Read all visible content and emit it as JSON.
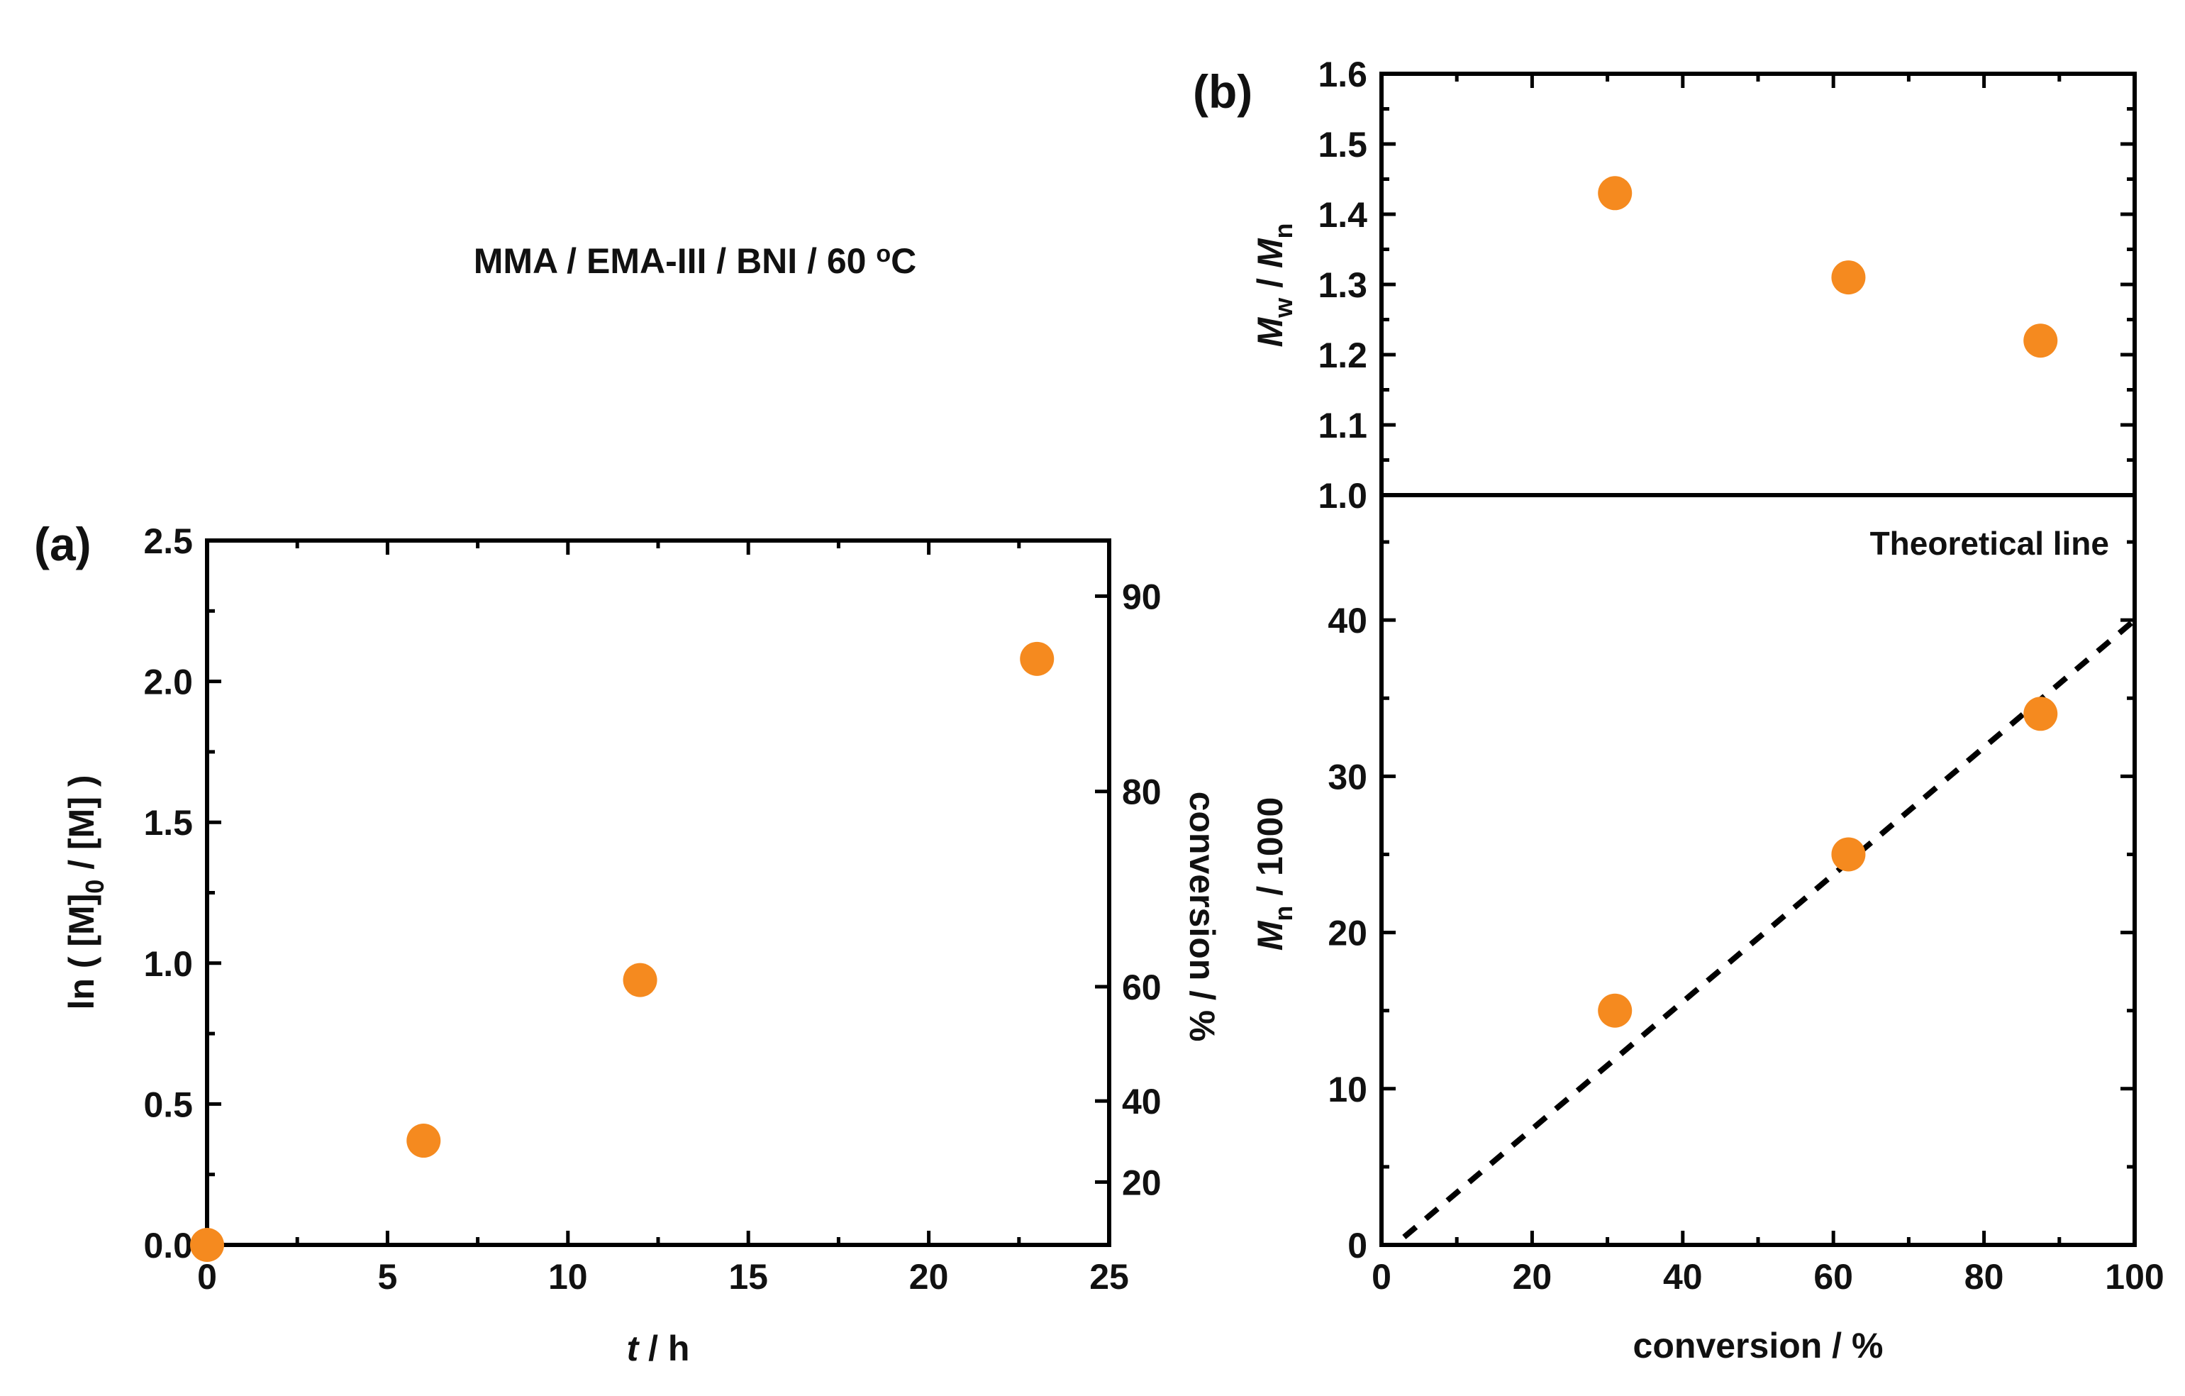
{
  "colors": {
    "marker": "#F58A1F",
    "axis": "#000000",
    "text": "#111111"
  },
  "chart_data": [
    {
      "id": "a",
      "type": "scatter",
      "panel_label": "(a)",
      "annotation": {
        "main": "MMA / EMA-III / BNI / 60 ",
        "sup": "o",
        "end": "C"
      },
      "xlabel": {
        "var": "t",
        "rest": " / h"
      },
      "ylabel": {
        "pre": "ln ( [M]",
        "sub": "0",
        "post": " / [M] )"
      },
      "y2label": "conversion / %",
      "xlim": [
        0,
        25
      ],
      "ylim": [
        0,
        2.5
      ],
      "xticks": [
        "0",
        "5",
        "10",
        "15",
        "20",
        "25"
      ],
      "yticks": [
        "0.0",
        "0.5",
        "1.0",
        "1.5",
        "2.0",
        "2.5"
      ],
      "y2ticks": [
        20,
        40,
        60,
        80,
        90
      ],
      "series": [
        {
          "name": "ln([M]0/[M])",
          "x": [
            0,
            6,
            12,
            23
          ],
          "y": [
            0.0,
            0.37,
            0.94,
            2.08
          ]
        }
      ]
    },
    {
      "id": "b-top",
      "type": "scatter",
      "panel_label": "(b)",
      "ylabel": {
        "a": "M",
        "a_sub": "w",
        "mid": " / ",
        "b": "M",
        "b_sub": "n"
      },
      "xlim": [
        0,
        100
      ],
      "ylim": [
        1.0,
        1.6
      ],
      "yticks": [
        "1.0",
        "1.1",
        "1.2",
        "1.3",
        "1.4",
        "1.5",
        "1.6"
      ],
      "series": [
        {
          "name": "Mw/Mn",
          "x": [
            31,
            62,
            87.5
          ],
          "y": [
            1.43,
            1.31,
            1.22
          ]
        }
      ]
    },
    {
      "id": "b-bottom",
      "type": "scatter",
      "xlabel": "conversion / %",
      "ylabel": {
        "a": "M",
        "a_sub": "n",
        "rest": " / 1000"
      },
      "xlim": [
        0,
        100
      ],
      "ylim": [
        0,
        48
      ],
      "xticks": [
        "0",
        "20",
        "40",
        "60",
        "80",
        "100"
      ],
      "yticks": [
        "0",
        "10",
        "20",
        "30",
        "40"
      ],
      "annotation": "Theoretical line",
      "series": [
        {
          "name": "Mn/1000",
          "x": [
            31,
            62,
            87.5
          ],
          "y": [
            15,
            25,
            34
          ]
        }
      ],
      "theory_line": {
        "x": [
          3,
          100
        ],
        "y": [
          0.5,
          40
        ]
      }
    }
  ]
}
